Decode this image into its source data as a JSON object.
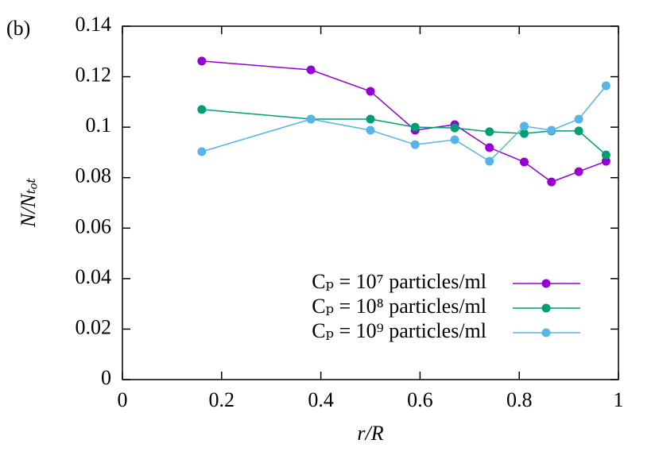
{
  "chart_data": {
    "type": "line",
    "annotation": "(b)",
    "xlabel": "r/R",
    "ylabel": "N/Nₜₒₜ",
    "x": [
      0.16,
      0.38,
      0.5,
      0.59,
      0.67,
      0.74,
      0.81,
      0.865,
      0.92,
      0.975
    ],
    "series": [
      {
        "name": "Cₚ = 10⁷ particles/ml",
        "color": "#9400d3",
        "values": [
          0.1262,
          0.1227,
          0.1142,
          0.0988,
          0.101,
          0.0919,
          0.0862,
          0.0783,
          0.0824,
          0.0865
        ]
      },
      {
        "name": "Cₚ = 10⁸ particles/ml",
        "color": "#009e73",
        "values": [
          0.107,
          0.1032,
          0.1032,
          0.1,
          0.0997,
          0.0982,
          0.0975,
          0.0985,
          0.0985,
          0.089
        ]
      },
      {
        "name": "Cₚ = 10⁹ particles/ml",
        "color": "#56b4e9",
        "values": [
          0.0903,
          0.1032,
          0.0988,
          0.0931,
          0.095,
          0.0865,
          0.1004,
          0.0988,
          0.1032,
          0.1164
        ]
      }
    ],
    "xlim": [
      0,
      1
    ],
    "xticks": [
      0,
      0.2,
      0.4,
      0.6,
      0.8,
      1
    ],
    "ylim": [
      0,
      0.14
    ],
    "yticks": [
      0,
      0.02,
      0.04,
      0.06,
      0.08,
      0.1,
      0.12,
      0.14
    ],
    "legend": "lower right"
  }
}
